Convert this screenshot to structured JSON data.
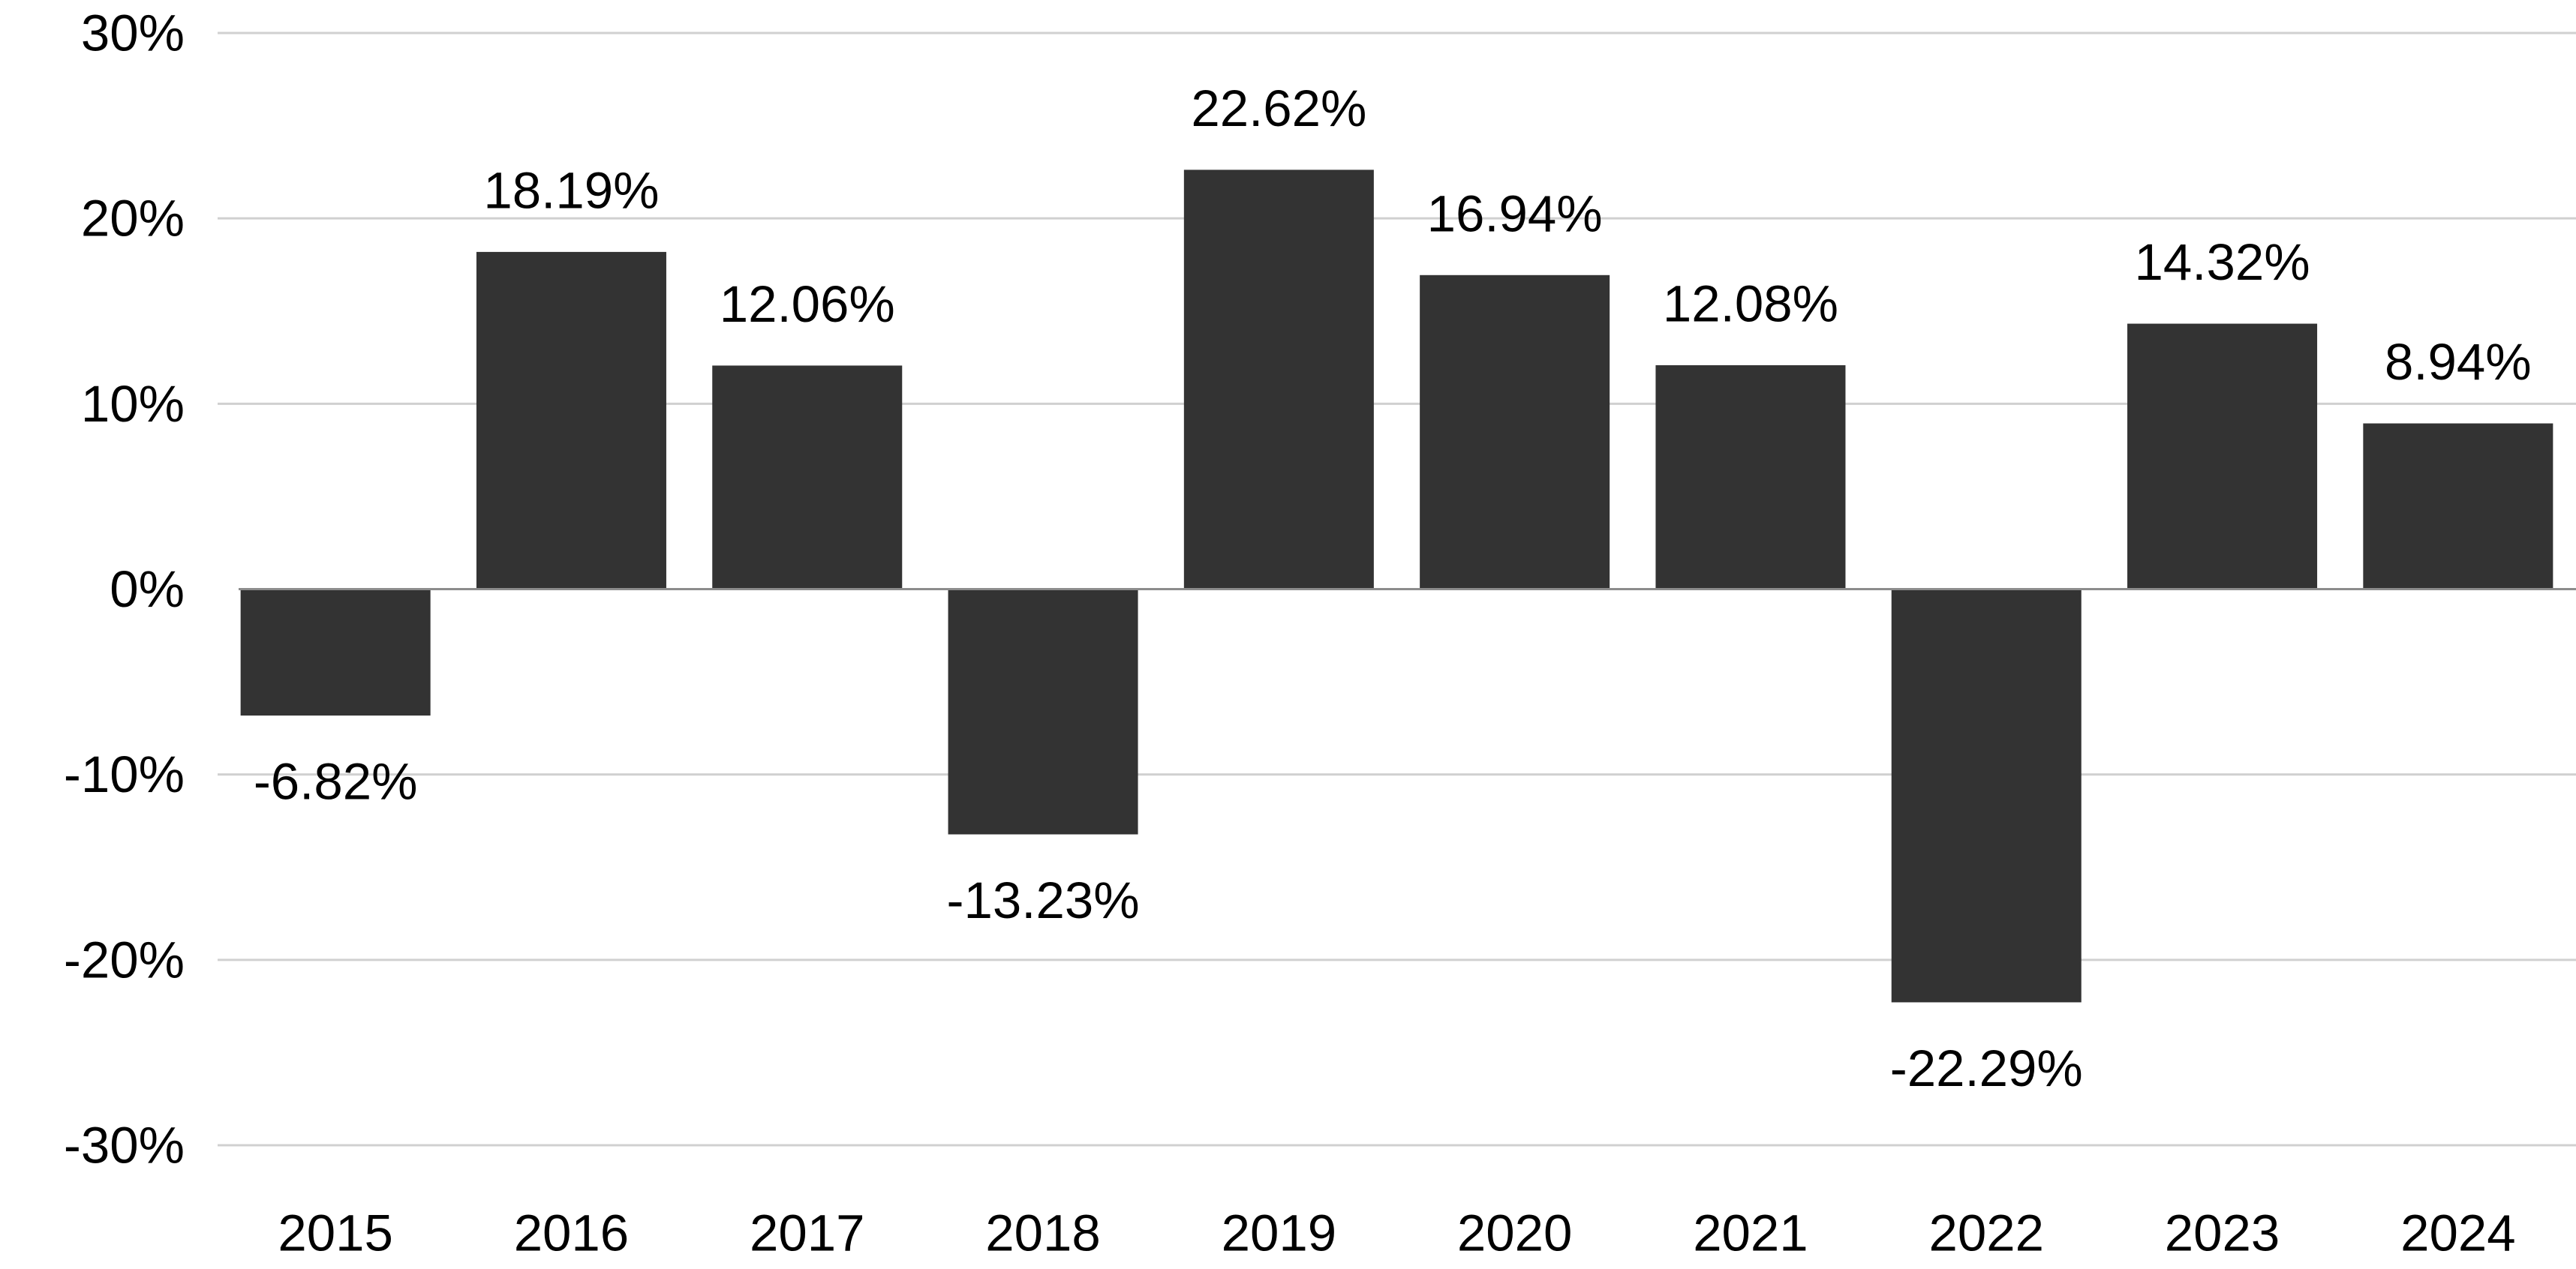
{
  "chart_data": {
    "type": "bar",
    "title": "",
    "xlabel": "",
    "ylabel": "",
    "categories": [
      "2015",
      "2016",
      "2017",
      "2018",
      "2019",
      "2020",
      "2021",
      "2022",
      "2023",
      "2024"
    ],
    "values": [
      -6.82,
      18.19,
      12.06,
      -13.23,
      22.62,
      16.94,
      12.08,
      -22.29,
      14.32,
      8.94
    ],
    "data_labels": [
      "-6.82%",
      "18.19%",
      "12.06%",
      "-13.23%",
      "22.62%",
      "16.94%",
      "12.08%",
      "-22.29%",
      "14.32%",
      "8.94%"
    ],
    "y_ticks": [
      30,
      20,
      10,
      0,
      -10,
      -20,
      -30
    ],
    "y_tick_labels": [
      "30%",
      "20%",
      "10%",
      "0%",
      "-10%",
      "-20%",
      "-30%"
    ],
    "ylim": [
      -30,
      30
    ],
    "grid": true,
    "legend": "none",
    "colors": {
      "bar": "#333333",
      "grid": "#d0d0d0",
      "zero_line": "#8c8c8c",
      "text": "#000000",
      "background": "#ffffff"
    }
  }
}
